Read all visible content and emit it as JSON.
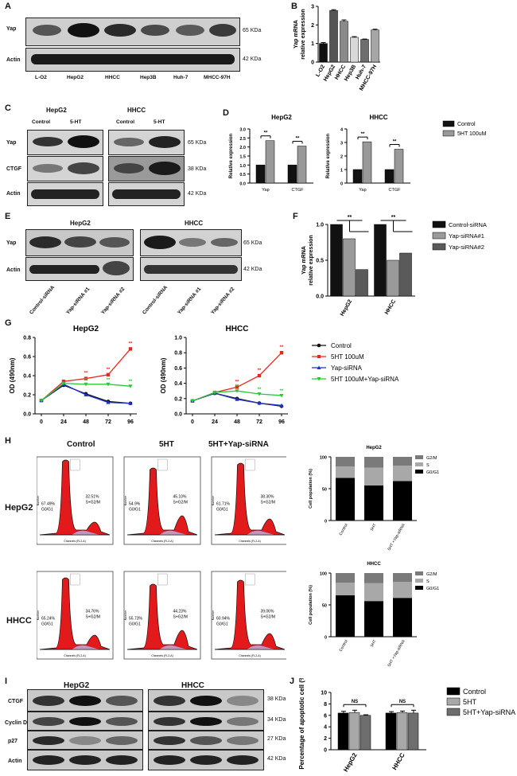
{
  "panel_letters": [
    "A",
    "B",
    "C",
    "D",
    "E",
    "F",
    "G",
    "H",
    "I",
    "J"
  ],
  "A": {
    "rows": [
      "Yap",
      "Actin"
    ],
    "kda": [
      "65 KDa",
      "42 KDa"
    ],
    "lanes": [
      "L-O2",
      "HepG2",
      "HHCC",
      "Hep3B",
      "Huh-7",
      "MHCC-97H"
    ]
  },
  "C": {
    "groups": [
      "HepG2",
      "HHCC"
    ],
    "treat": [
      "Control",
      "5-HT",
      "Control",
      "5-HT"
    ],
    "rows": [
      "Yap",
      "CTGF",
      "Actin"
    ],
    "kda": [
      "65 KDa",
      "38 KDa",
      "42 KDa"
    ]
  },
  "E": {
    "groups": [
      "HepG2",
      "HHCC"
    ],
    "rows": [
      "Yap",
      "Actin"
    ],
    "kda": [
      "65 KDa",
      "42 KDa"
    ],
    "lanes": [
      "Control-siRNA",
      "Yap-siRNA #1",
      "Yap-siRNA #2",
      "Control-siRNA",
      "Yap-siRNA #1",
      "Yap-siRNA #2"
    ]
  },
  "H": {
    "cols": [
      "Control",
      "5HT",
      "5HT+Yap-siRNA"
    ],
    "rows": [
      "HepG2",
      "HHCC"
    ],
    "g0": [
      "67.49%",
      "54.9%",
      "61.71%",
      "65.24%",
      "55.73%",
      "60.94%"
    ],
    "g0lab": "G0/G1",
    "sg2": [
      "32.51%",
      "45.10%",
      "38.30%",
      "34.76%",
      "44.23%",
      "39.06%"
    ],
    "sg2lab": "S+G2/M",
    "xlab": "Channels (FL2-A)",
    "ylab": "Number"
  },
  "I": {
    "groups": [
      "HepG2",
      "HHCC"
    ],
    "rows": [
      "CTGF",
      "Cyclin D1",
      "p27",
      "Actin"
    ],
    "kda": [
      "38 KDa",
      "34 KDa",
      "27 KDa",
      "42 KDa"
    ],
    "lanes": [
      "Control",
      "5HT",
      "5HT+ Yap-siRNA",
      "Control",
      "5HT",
      "5HT+ Yap-siRNA"
    ]
  },
  "chart_data": [
    {
      "id": "B",
      "type": "bar",
      "categories": [
        "L-O2",
        "HepG2",
        "HHCC",
        "Hep3B",
        "Huh-7",
        "MHCC-97H"
      ],
      "values": [
        1.0,
        2.78,
        2.2,
        1.33,
        1.22,
        1.73
      ],
      "errors": [
        0.05,
        0.04,
        0.07,
        0.04,
        0.02,
        0.04
      ],
      "colors": [
        "#111111",
        "#555555",
        "#8a8a8a",
        "#d9d9d9",
        "#6e6e6e",
        "#a6a6a6"
      ],
      "ylabel": "Yap mRNA relative expression",
      "ylim": [
        0,
        3
      ],
      "yticks": [
        "0",
        "1",
        "2",
        "3"
      ]
    },
    {
      "id": "D1",
      "type": "bar",
      "title": "HepG2",
      "categories": [
        "Yap",
        "CTGF"
      ],
      "series": [
        {
          "name": "Control",
          "values": [
            1.0,
            1.0
          ],
          "color": "#111111"
        },
        {
          "name": "5HT 100uM",
          "values": [
            2.35,
            2.05
          ],
          "color": "#999999"
        }
      ],
      "ylabel": "Relative expression",
      "ylim": [
        0,
        3
      ],
      "yticks": [
        "0.0",
        "0.5",
        "1.0",
        "1.5",
        "2.0",
        "2.5",
        "3.0"
      ],
      "sig": [
        "**",
        "**"
      ]
    },
    {
      "id": "D2",
      "type": "bar",
      "title": "HHCC",
      "categories": [
        "Yap",
        "CTGF"
      ],
      "series": [
        {
          "name": "Control",
          "values": [
            1.0,
            1.0
          ],
          "color": "#111111"
        },
        {
          "name": "5HT 100uM",
          "values": [
            3.05,
            2.5
          ],
          "color": "#999999"
        }
      ],
      "ylabel": "Relative expression",
      "ylim": [
        0,
        4
      ],
      "yticks": [
        "0",
        "1",
        "2",
        "3",
        "4"
      ],
      "sig": [
        "**",
        "**"
      ]
    },
    {
      "id": "F",
      "type": "bar",
      "categories": [
        "HepG2",
        "HHCC"
      ],
      "series": [
        {
          "name": "Control-siRNA",
          "values": [
            1.0,
            1.0
          ],
          "color": "#111111"
        },
        {
          "name": "Yap-siRNA#1",
          "values": [
            0.8,
            0.5
          ],
          "color": "#9a9a9a"
        },
        {
          "name": "Yap-siRNA#2",
          "values": [
            0.37,
            0.6
          ],
          "color": "#5a5a5a"
        }
      ],
      "ylabel": "Yap mRNA relative expression",
      "ylim": [
        0,
        1
      ],
      "yticks": [
        "0.0",
        "0.5",
        "1.0"
      ],
      "sig": [
        "**",
        "**"
      ]
    },
    {
      "id": "G1",
      "type": "line",
      "title": "HepG2",
      "x": [
        0,
        24,
        48,
        72,
        96
      ],
      "series": [
        {
          "name": "Control",
          "color": "#111111",
          "values": [
            0.14,
            0.3,
            0.21,
            0.13,
            0.11
          ]
        },
        {
          "name": "5HT 100uM",
          "color": "#e8261f",
          "values": [
            0.14,
            0.34,
            0.37,
            0.41,
            0.68
          ]
        },
        {
          "name": "Yap-siRNA",
          "color": "#1f33c8",
          "values": [
            0.14,
            0.31,
            0.2,
            0.12,
            0.11
          ]
        },
        {
          "name": "5HT 100uM+Yap-siRNA",
          "color": "#2cc83a",
          "values": [
            0.14,
            0.32,
            0.31,
            0.31,
            0.29
          ]
        }
      ],
      "ylabel": "OD (490nm)",
      "ylim": [
        0,
        0.8
      ],
      "yticks": [
        "0.0",
        "0.2",
        "0.4",
        "0.6",
        "0.8"
      ],
      "xticks": [
        "0",
        "24",
        "48",
        "72",
        "96"
      ]
    },
    {
      "id": "G2",
      "type": "line",
      "title": "HHCC",
      "x": [
        0,
        24,
        48,
        72,
        96
      ],
      "series": [
        {
          "name": "Control",
          "color": "#111111",
          "values": [
            0.17,
            0.27,
            0.2,
            0.14,
            0.1
          ]
        },
        {
          "name": "5HT 100uM",
          "color": "#e8261f",
          "values": [
            0.17,
            0.28,
            0.35,
            0.5,
            0.8
          ]
        },
        {
          "name": "Yap-siRNA",
          "color": "#1f33c8",
          "values": [
            0.17,
            0.27,
            0.19,
            0.14,
            0.11
          ]
        },
        {
          "name": "5HT 100uM+Yap-siRNA",
          "color": "#2cc83a",
          "values": [
            0.17,
            0.28,
            0.3,
            0.26,
            0.24
          ]
        }
      ],
      "ylabel": "OD (490nm)",
      "ylim": [
        0,
        1.0
      ],
      "yticks": [
        "0.0",
        "0.2",
        "0.4",
        "0.6",
        "0.8",
        "1.0"
      ],
      "xticks": [
        "0",
        "24",
        "48",
        "72",
        "96"
      ]
    },
    {
      "id": "H1",
      "type": "bar",
      "stacked": true,
      "title": "HepG2",
      "categories": [
        "Control",
        "5HT",
        "5HT +Yap-siRNA"
      ],
      "series": [
        {
          "name": "G0/G1",
          "values": [
            67,
            55,
            62
          ],
          "color": "#000000"
        },
        {
          "name": "S",
          "values": [
            18,
            28,
            24
          ],
          "color": "#a8a8a8"
        },
        {
          "name": "G2/M",
          "values": [
            15,
            17,
            14
          ],
          "color": "#7a7a7a"
        }
      ],
      "ylabel": "Cell population (%)",
      "ylim": [
        0,
        100
      ],
      "yticks": [
        "0",
        "50",
        "100"
      ]
    },
    {
      "id": "H2",
      "type": "bar",
      "stacked": true,
      "title": "HHCC",
      "categories": [
        "Control",
        "5HT",
        "5HT +Yap-siRNA"
      ],
      "series": [
        {
          "name": "G0/G1",
          "values": [
            65,
            56,
            61
          ],
          "color": "#000000"
        },
        {
          "name": "S",
          "values": [
            20,
            28,
            25
          ],
          "color": "#a8a8a8"
        },
        {
          "name": "G2/M",
          "values": [
            15,
            16,
            14
          ],
          "color": "#7a7a7a"
        }
      ],
      "ylabel": "Cell population (%)",
      "ylim": [
        0,
        100
      ],
      "yticks": [
        "0",
        "50",
        "100"
      ]
    },
    {
      "id": "J",
      "type": "bar",
      "categories": [
        "HepG2",
        "HHCC"
      ],
      "series": [
        {
          "name": "Control",
          "values": [
            6.4,
            6.4
          ],
          "color": "#000000"
        },
        {
          "name": "5HT",
          "values": [
            6.5,
            6.5
          ],
          "color": "#a8a8a8"
        },
        {
          "name": "5HT+Yap-siRNA",
          "values": [
            6.0,
            6.4
          ],
          "color": "#6e6e6e"
        }
      ],
      "errors": [
        [
          0.3,
          0.25
        ],
        [
          0.4,
          0.25
        ],
        [
          0.1,
          0.5
        ]
      ],
      "ylabel": "Percentage of apoptotic cell (%)",
      "ylim": [
        0,
        10
      ],
      "yticks": [
        "0",
        "2",
        "4",
        "6",
        "8",
        "10"
      ],
      "sig": [
        "NS",
        "NS"
      ]
    }
  ]
}
